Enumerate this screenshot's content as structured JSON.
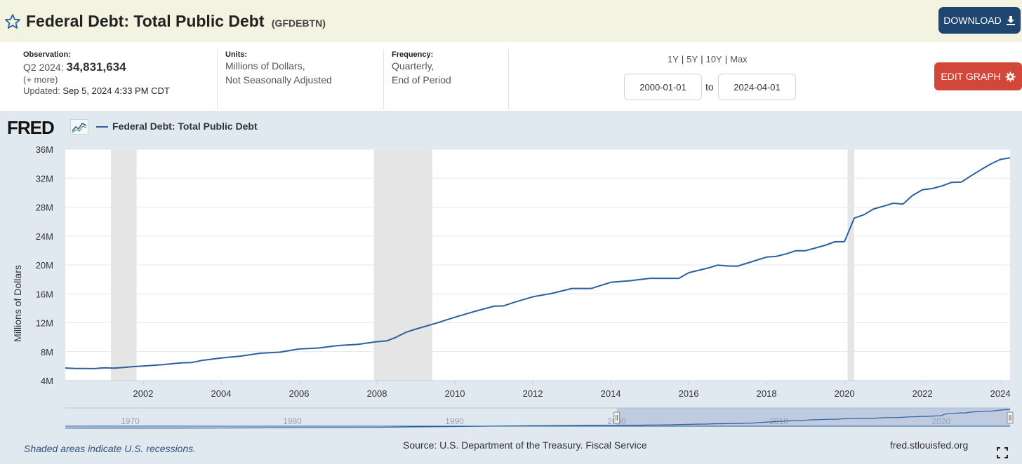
{
  "header": {
    "title": "Federal Debt: Total Public Debt",
    "series_id": "(GFDEBTN)",
    "download_label": "DOWNLOAD"
  },
  "meta": {
    "observation_label": "Observation:",
    "observation_period": "Q2 2024:",
    "observation_value": "34,831,634",
    "more": "(+ more)",
    "updated_label": "Updated:",
    "updated_value": "Sep 5, 2024 4:33 PM CDT",
    "units_label": "Units:",
    "units_line1": "Millions of Dollars,",
    "units_line2": "Not Seasonally Adjusted",
    "frequency_label": "Frequency:",
    "frequency_line1": "Quarterly,",
    "frequency_line2": "End of Period"
  },
  "controls": {
    "ranges": [
      "1Y",
      "5Y",
      "10Y",
      "Max"
    ],
    "start_date": "2000-01-01",
    "to_label": "to",
    "end_date": "2024-04-01",
    "edit_label": "EDIT GRAPH"
  },
  "graph": {
    "logo": "FRED",
    "legend": "Federal Debt: Total Public Debt",
    "footer_note": "Shaded areas indicate U.S. recessions.",
    "source": "Source: U.S. Department of the Treasury. Fiscal Service",
    "site": "fred.stlouisfed.org",
    "colors": {
      "line": "#2c5f9d",
      "recession": "#e5e5e5",
      "nav_fill": "#aabcd9"
    }
  },
  "chart_data": {
    "type": "line",
    "title": "Federal Debt: Total Public Debt",
    "xlabel": "",
    "ylabel": "Millions of Dollars",
    "xlim": [
      2000.0,
      2024.25
    ],
    "ylim": [
      4000000,
      36000000
    ],
    "y_ticks": [
      4000000,
      8000000,
      12000000,
      16000000,
      20000000,
      24000000,
      28000000,
      32000000,
      36000000
    ],
    "y_tick_labels": [
      "4M",
      "8M",
      "12M",
      "16M",
      "20M",
      "24M",
      "28M",
      "32M",
      "36M"
    ],
    "x_ticks": [
      2002,
      2004,
      2006,
      2008,
      2010,
      2012,
      2014,
      2016,
      2018,
      2020,
      2022,
      2024
    ],
    "x_tick_labels": [
      "2002",
      "2004",
      "2006",
      "2008",
      "2010",
      "2012",
      "2014",
      "2016",
      "2018",
      "2020",
      "2022",
      "2024"
    ],
    "recessions": [
      [
        2001.17,
        2001.83
      ],
      [
        2007.92,
        2009.42
      ],
      [
        2020.08,
        2020.25
      ]
    ],
    "series": [
      {
        "name": "Federal Debt: Total Public Debt",
        "x": [
          2000.0,
          2000.25,
          2000.5,
          2000.75,
          2001.0,
          2001.25,
          2001.5,
          2001.75,
          2002.0,
          2002.5,
          2003.0,
          2003.25,
          2003.5,
          2004.0,
          2004.5,
          2005.0,
          2005.5,
          2006.0,
          2006.5,
          2007.0,
          2007.5,
          2008.0,
          2008.25,
          2008.5,
          2008.75,
          2009.0,
          2009.5,
          2010.0,
          2010.5,
          2011.0,
          2011.25,
          2011.5,
          2012.0,
          2012.5,
          2013.0,
          2013.5,
          2014.0,
          2014.5,
          2015.0,
          2015.5,
          2015.75,
          2016.0,
          2016.5,
          2016.75,
          2017.0,
          2017.25,
          2017.5,
          2018.0,
          2018.25,
          2018.5,
          2018.75,
          2019.0,
          2019.5,
          2019.75,
          2020.0,
          2020.25,
          2020.5,
          2020.75,
          2021.0,
          2021.25,
          2021.5,
          2021.75,
          2022.0,
          2022.25,
          2022.5,
          2022.75,
          2023.0,
          2023.25,
          2023.5,
          2023.75,
          2024.0,
          2024.25
        ],
        "values": [
          5750000,
          5680000,
          5670000,
          5660000,
          5770000,
          5730000,
          5810000,
          5940000,
          6010000,
          6200000,
          6460000,
          6500000,
          6780000,
          7130000,
          7380000,
          7780000,
          7930000,
          8370000,
          8510000,
          8850000,
          9000000,
          9380000,
          9490000,
          10020000,
          10700000,
          11130000,
          11910000,
          12770000,
          13560000,
          14290000,
          14340000,
          14790000,
          15600000,
          16070000,
          16740000,
          16740000,
          17600000,
          17820000,
          18150000,
          18150000,
          18150000,
          18920000,
          19570000,
          19980000,
          19850000,
          19840000,
          20240000,
          21090000,
          21190000,
          21520000,
          21970000,
          21970000,
          22720000,
          23200000,
          23220000,
          26480000,
          26950000,
          27750000,
          28130000,
          28530000,
          28430000,
          29620000,
          30400000,
          30570000,
          30930000,
          31420000,
          31460000,
          32330000,
          33170000,
          33950000,
          34590000,
          34830000
        ]
      }
    ],
    "navigator": {
      "x_ticks": [
        1970,
        1980,
        1990,
        2000,
        2010,
        2020
      ],
      "x_tick_labels": [
        "1970",
        "1980",
        "1990",
        "2000",
        "2010",
        "2020"
      ],
      "xlim": [
        1966.0,
        2024.25
      ],
      "selected_range": [
        2000.0,
        2024.25
      ]
    }
  }
}
